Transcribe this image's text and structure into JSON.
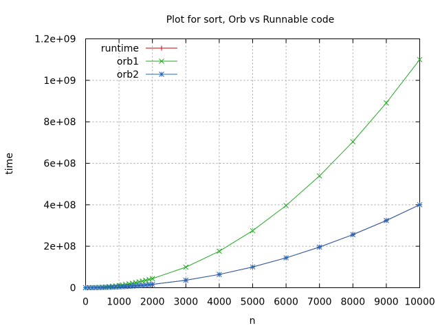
{
  "chart_data": {
    "type": "line",
    "title": "Plot for sort, Orb vs Runnable code",
    "xlabel": "n",
    "ylabel": "time",
    "xlim": [
      0,
      10000
    ],
    "ylim": [
      0,
      1200000000
    ],
    "x_ticks": [
      0,
      1000,
      2000,
      3000,
      4000,
      5000,
      6000,
      7000,
      8000,
      9000,
      10000
    ],
    "x_tick_labels": [
      "0",
      "1000",
      "2000",
      "3000",
      "4000",
      "5000",
      "6000",
      "7000",
      "8000",
      "9000",
      "10000"
    ],
    "y_ticks": [
      0,
      200000000,
      400000000,
      600000000,
      800000000,
      1000000000,
      1200000000
    ],
    "y_tick_labels": [
      "0",
      "2e+08",
      "4e+08",
      "6e+08",
      "8e+08",
      "1e+09",
      "1.2e+09"
    ],
    "grid": true,
    "legend_position": "top-left",
    "x": [
      0,
      100,
      200,
      300,
      400,
      500,
      600,
      700,
      800,
      900,
      1000,
      1100,
      1200,
      1300,
      1400,
      1500,
      1600,
      1700,
      1800,
      1900,
      2000,
      3000,
      4000,
      5000,
      6000,
      7000,
      8000,
      9000,
      10000
    ],
    "series": [
      {
        "name": "runtime",
        "color": "#cc0000",
        "marker": "plus",
        "values": [
          0,
          40000,
          160000,
          360000,
          640000,
          1000000,
          1440000,
          1960000,
          2560000,
          3240000,
          4000000,
          4840000,
          5760000,
          6760000,
          7840000,
          9000000,
          10240000,
          11560000,
          12960000,
          14440000,
          16000000,
          36000000,
          64000000,
          100000000,
          144000000,
          196000000,
          256000000,
          324000000,
          400000000
        ]
      },
      {
        "name": "orb1",
        "color": "#22aa22",
        "marker": "x",
        "values": [
          0,
          110000,
          440000,
          990000,
          1760000,
          2750000,
          3960000,
          5390000,
          7040000,
          8910000,
          11000000,
          13310000,
          15840000,
          18590000,
          21560000,
          24750000,
          28160000,
          31790000,
          35640000,
          39710000,
          44000000,
          99000000,
          176000000,
          275000000,
          396000000,
          539000000,
          704000000,
          891000000,
          1100000000
        ]
      },
      {
        "name": "orb2",
        "color": "#2266bb",
        "marker": "star",
        "values": [
          0,
          40000,
          160000,
          360000,
          640000,
          1000000,
          1440000,
          1960000,
          2560000,
          3240000,
          4000000,
          4840000,
          5760000,
          6760000,
          7840000,
          9000000,
          10240000,
          11560000,
          12960000,
          14440000,
          16000000,
          36000000,
          64000000,
          100000000,
          144000000,
          196000000,
          256000000,
          324000000,
          400000000
        ]
      }
    ]
  }
}
